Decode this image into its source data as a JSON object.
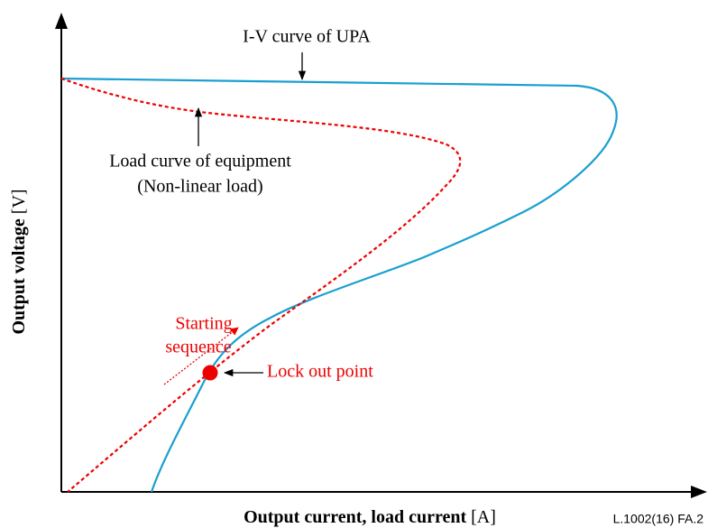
{
  "labels": {
    "iv_curve": "I-V curve of UPA",
    "load_curve": "Load curve of equipment",
    "load_curve_note": "(Non-linear load)",
    "starting_line1": "Starting",
    "starting_line2": "sequence",
    "lock_out": "Lock out point"
  },
  "y_axis": {
    "text": "Output voltage",
    "unit": "[V]"
  },
  "x_axis": {
    "text": "Output current, load current",
    "unit": "[A]"
  },
  "figure_id": "L.1002(16)  FA.2"
}
